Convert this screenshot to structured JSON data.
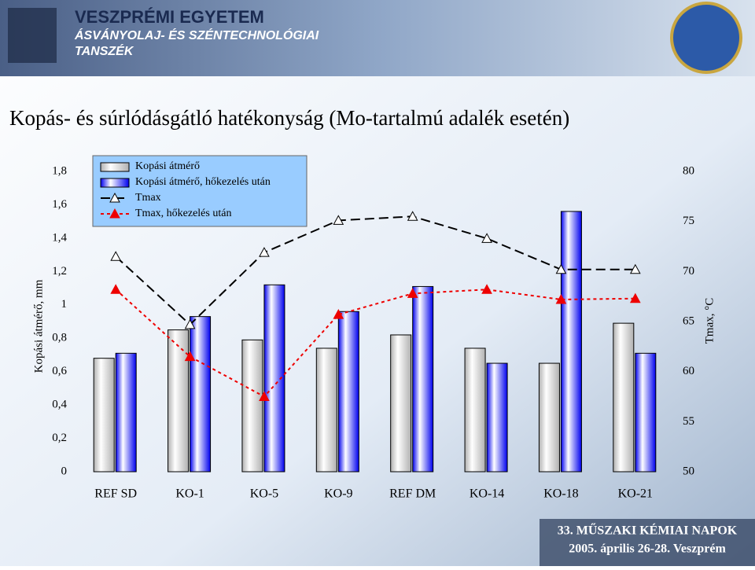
{
  "header": {
    "line1": "VESZPRÉMI EGYETEM",
    "line2": "ÁSVÁNYOLAJ- ÉS SZÉNTECHNOLÓGIAI",
    "line3": "TANSZÉK"
  },
  "chart_data": {
    "type": "bar",
    "title": "Kopás- és súrlódásgátló hatékonyság (Mo-tartalmú adalék esetén)",
    "y_label": "Kopási átmérő, mm",
    "y2_label": "Tmax, °C",
    "categories": [
      "REF SD",
      "KO-1",
      "KO-5",
      "KO-9",
      "REF DM",
      "KO-14",
      "KO-18",
      "KO-21"
    ],
    "series": [
      {
        "name": "Kopási átmérő",
        "type": "bar",
        "color": "#b0b0b0",
        "values": [
          0.68,
          0.85,
          0.79,
          0.74,
          0.82,
          0.74,
          0.65,
          0.89
        ]
      },
      {
        "name": "Kopási átmérő, hőkezelés után",
        "type": "bar",
        "color": "#0000ee",
        "values": [
          0.71,
          0.93,
          1.12,
          0.96,
          1.11,
          0.65,
          1.56,
          0.71
        ]
      },
      {
        "name": "Tmax",
        "type": "line",
        "axis": "y2",
        "color": "#000000",
        "values": [
          71.5,
          64.7,
          71.9,
          75.1,
          75.5,
          73.3,
          70.2,
          70.2
        ]
      },
      {
        "name": "Tmax, hőkezelés után",
        "type": "line",
        "axis": "y2",
        "color": "#ee0000",
        "values": [
          68.2,
          61.5,
          57.5,
          65.7,
          67.8,
          68.2,
          67.2,
          67.3
        ]
      }
    ],
    "ylim": [
      0,
      1.8
    ],
    "yticks": [
      0,
      {
        "value": 0.2,
        "label": "0,2"
      },
      {
        "value": 0.4,
        "label": "0,4"
      },
      {
        "value": 0.6,
        "label": "0,6"
      },
      {
        "value": 0.8,
        "label": "0,8"
      },
      1,
      {
        "value": 1.2,
        "label": "1,2"
      },
      {
        "value": 1.4,
        "label": "1,4"
      },
      {
        "value": 1.6,
        "label": "1,6"
      },
      {
        "value": 1.8,
        "label": "1,8"
      }
    ],
    "y2lim": [
      50,
      80
    ],
    "y2ticks": [
      50,
      55,
      60,
      65,
      70,
      75,
      80
    ]
  },
  "footer": {
    "line1": "33. MŰSZAKI KÉMIAI NAPOK",
    "line2": "2005. április 26-28. Veszprém"
  }
}
